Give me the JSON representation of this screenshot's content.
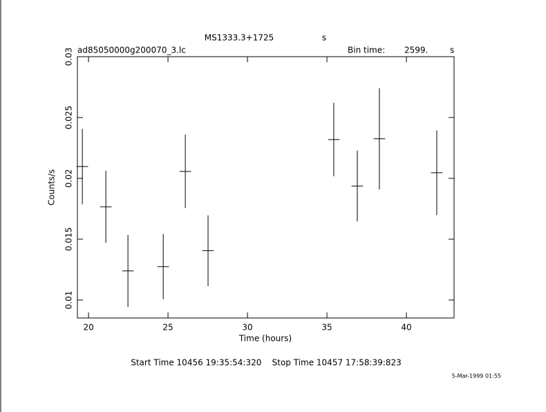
{
  "chart_data": {
    "type": "scatter",
    "title": "MS1333.3+1725",
    "title_unit": "s",
    "subtitle": "ad85050000g200070_3.lc",
    "bin_label": "Bin time:",
    "bin_value": "2599.",
    "bin_unit": "s",
    "x_label": "Time (hours)",
    "y_label": "Counts/s",
    "footer": "Start Time 10456 19:35:54:320    Stop Time 10457 17:58:39:823",
    "date": "5-Mar-1999 01:55",
    "x": [
      19.61,
      21.09,
      22.48,
      24.7,
      26.09,
      27.52,
      35.43,
      36.91,
      38.3,
      41.91
    ],
    "xerr": [
      0.361,
      0.361,
      0.361,
      0.361,
      0.361,
      0.361,
      0.361,
      0.361,
      0.361,
      0.361
    ],
    "values": [
      0.02097,
      0.01766,
      0.01239,
      0.01274,
      0.02057,
      0.01405,
      0.02319,
      0.01937,
      0.02325,
      0.02046
    ],
    "yerr": [
      0.0031,
      0.00296,
      0.00296,
      0.00268,
      0.00302,
      0.00291,
      0.00302,
      0.00291,
      0.00416,
      0.00348
    ],
    "color": "#000000",
    "xlim": [
      19.3,
      43.0
    ],
    "ylim": [
      0.00852,
      0.03
    ],
    "xticks": [
      20,
      25,
      30,
      35,
      40
    ],
    "yticks": [
      0.01,
      0.015,
      0.02,
      0.025,
      0.03
    ]
  }
}
